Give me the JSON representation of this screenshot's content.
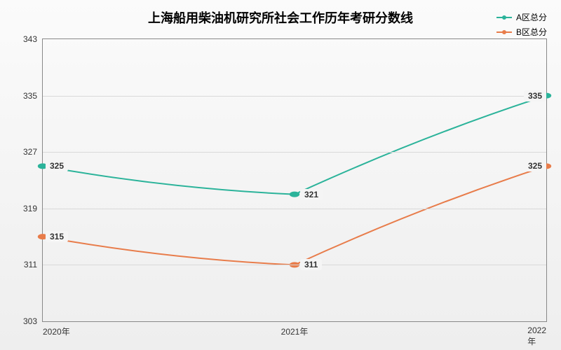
{
  "chart": {
    "type": "line",
    "title": "上海船用柴油机研究所社会工作历年考研分数线",
    "title_fontsize": 18,
    "background_gradient": [
      "#fbfbfb",
      "#eeeeee"
    ],
    "plot_border_color": "#888888",
    "grid_color": "#d9d9d9",
    "label_fontsize": 12,
    "x": {
      "categories": [
        "2020年",
        "2021年",
        "2022年"
      ],
      "positions": [
        0,
        50,
        100
      ]
    },
    "y": {
      "min": 303,
      "max": 343,
      "tick_step": 8,
      "ticks": [
        303,
        311,
        319,
        327,
        335,
        343
      ]
    },
    "series": [
      {
        "name": "A区总分",
        "color": "#2bb39a",
        "values": [
          325,
          321,
          335
        ],
        "line_width": 2,
        "curve": "smooth"
      },
      {
        "name": "B区总分",
        "color": "#e87c4a",
        "values": [
          315,
          311,
          325
        ],
        "line_width": 2,
        "curve": "smooth"
      }
    ]
  }
}
